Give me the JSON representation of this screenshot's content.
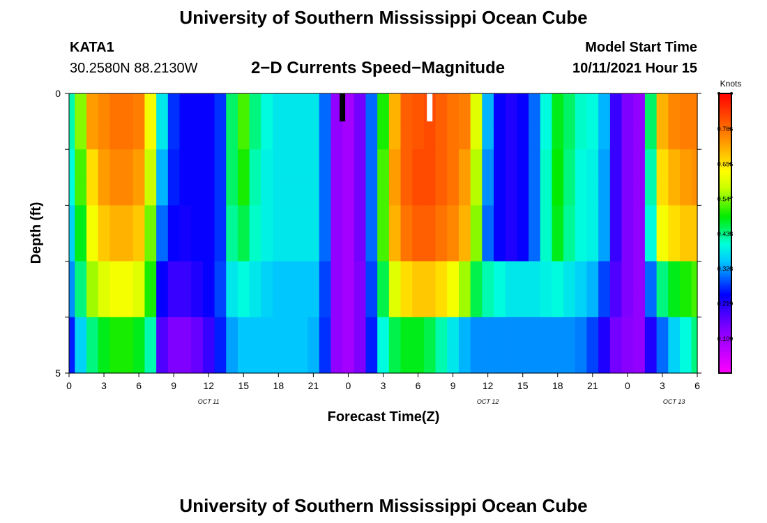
{
  "header": {
    "title": "University of Southern Mississippi Ocean Cube",
    "station": "KATA1",
    "coords": "30.2580N  88.2130W",
    "subtitle": "2−D Currents Speed−Magnitude",
    "model_start_label": "Model Start Time",
    "model_start_value": "10/11/2021 Hour 15"
  },
  "footer": {
    "title": "University of Southern Mississippi Ocean Cube"
  },
  "chart_data": {
    "type": "heatmap",
    "title": "2−D Currents Speed−Magnitude",
    "xlabel": "Forecast Time(Z)",
    "ylabel": "Depth (ft)",
    "units": "Knots",
    "ylim": [
      0,
      5
    ],
    "y_tick_labels": [
      "0",
      "5"
    ],
    "x_range_hours": [
      0,
      54
    ],
    "x_tick_labels": [
      "0",
      "3",
      "6",
      "9",
      "12",
      "15",
      "18",
      "21",
      "0",
      "3",
      "6",
      "9",
      "12",
      "15",
      "18",
      "21",
      "0",
      "3",
      "6"
    ],
    "date_labels": [
      {
        "text": "OCT  11",
        "hour": 12
      },
      {
        "text": "OCT  12",
        "hour": 36
      },
      {
        "text": "OCT  13",
        "hour": 52
      }
    ],
    "colorbar": {
      "range": [
        0,
        0.875
      ],
      "tick_labels": [
        "0.109",
        "0.219",
        "0.328",
        "0.438",
        "0.547",
        "0.656",
        "0.766"
      ],
      "tick_values": [
        0.109,
        0.219,
        0.328,
        0.438,
        0.547,
        0.656,
        0.766
      ]
    },
    "markers": [
      {
        "hour": 23.5,
        "color": "#000000",
        "depth_range": [
          0,
          0.5
        ]
      },
      {
        "hour": 31.0,
        "color": "#ffffff",
        "depth_range": [
          0,
          0.5
        ]
      }
    ],
    "x_hours": [
      0,
      1,
      2,
      3,
      4,
      5,
      6,
      7,
      8,
      9,
      10,
      11,
      12,
      13,
      14,
      15,
      16,
      17,
      18,
      19,
      20,
      21,
      22,
      23,
      24,
      25,
      26,
      27,
      28,
      29,
      30,
      31,
      32,
      33,
      34,
      35,
      36,
      37,
      38,
      39,
      40,
      41,
      42,
      43,
      44,
      45,
      46,
      47,
      48,
      49,
      50,
      51,
      52,
      53,
      54
    ],
    "depth_levels": [
      0.25,
      0.75,
      1.25,
      1.75,
      2.25,
      2.75,
      3.25,
      3.75,
      4.25,
      4.75
    ],
    "values": [
      [
        0.42,
        0.55,
        0.72,
        0.74,
        0.76,
        0.76,
        0.75,
        0.62,
        0.38,
        0.27,
        0.24,
        0.24,
        0.24,
        0.27,
        0.45,
        0.52,
        0.44,
        0.4,
        0.38,
        0.38,
        0.38,
        0.38,
        0.3,
        0.12,
        0.1,
        0.15,
        0.3,
        0.5,
        0.7,
        0.78,
        0.79,
        0.8,
        0.78,
        0.76,
        0.75,
        0.6,
        0.34,
        0.24,
        0.22,
        0.24,
        0.3,
        0.4,
        0.48,
        0.45,
        0.41,
        0.4,
        0.34,
        0.2,
        0.14,
        0.12,
        0.45,
        0.7,
        0.74,
        0.75,
        0.75
      ],
      [
        0.42,
        0.55,
        0.72,
        0.74,
        0.76,
        0.76,
        0.75,
        0.62,
        0.38,
        0.27,
        0.24,
        0.24,
        0.24,
        0.27,
        0.45,
        0.52,
        0.44,
        0.4,
        0.38,
        0.38,
        0.38,
        0.38,
        0.3,
        0.12,
        0.1,
        0.15,
        0.3,
        0.5,
        0.7,
        0.78,
        0.79,
        0.8,
        0.78,
        0.76,
        0.75,
        0.6,
        0.34,
        0.24,
        0.22,
        0.24,
        0.3,
        0.4,
        0.48,
        0.45,
        0.41,
        0.4,
        0.34,
        0.2,
        0.14,
        0.12,
        0.45,
        0.7,
        0.74,
        0.75,
        0.75
      ],
      [
        0.4,
        0.52,
        0.66,
        0.72,
        0.74,
        0.74,
        0.72,
        0.58,
        0.34,
        0.26,
        0.24,
        0.24,
        0.24,
        0.27,
        0.45,
        0.5,
        0.42,
        0.39,
        0.38,
        0.38,
        0.38,
        0.38,
        0.3,
        0.12,
        0.1,
        0.15,
        0.3,
        0.52,
        0.72,
        0.78,
        0.8,
        0.8,
        0.78,
        0.76,
        0.72,
        0.57,
        0.32,
        0.24,
        0.22,
        0.24,
        0.3,
        0.41,
        0.49,
        0.44,
        0.4,
        0.39,
        0.33,
        0.2,
        0.14,
        0.12,
        0.42,
        0.66,
        0.7,
        0.72,
        0.73
      ],
      [
        0.4,
        0.52,
        0.66,
        0.72,
        0.74,
        0.74,
        0.72,
        0.58,
        0.34,
        0.26,
        0.24,
        0.24,
        0.24,
        0.27,
        0.45,
        0.5,
        0.42,
        0.39,
        0.38,
        0.38,
        0.38,
        0.38,
        0.3,
        0.12,
        0.1,
        0.15,
        0.3,
        0.52,
        0.72,
        0.78,
        0.8,
        0.8,
        0.78,
        0.76,
        0.72,
        0.57,
        0.32,
        0.24,
        0.22,
        0.24,
        0.3,
        0.41,
        0.49,
        0.44,
        0.4,
        0.39,
        0.33,
        0.2,
        0.14,
        0.12,
        0.42,
        0.66,
        0.7,
        0.72,
        0.73
      ],
      [
        0.36,
        0.48,
        0.62,
        0.68,
        0.7,
        0.7,
        0.68,
        0.54,
        0.3,
        0.24,
        0.23,
        0.24,
        0.24,
        0.27,
        0.43,
        0.46,
        0.41,
        0.39,
        0.38,
        0.38,
        0.38,
        0.38,
        0.3,
        0.12,
        0.1,
        0.15,
        0.3,
        0.52,
        0.7,
        0.76,
        0.78,
        0.78,
        0.76,
        0.74,
        0.7,
        0.55,
        0.3,
        0.24,
        0.22,
        0.24,
        0.3,
        0.41,
        0.48,
        0.43,
        0.4,
        0.39,
        0.33,
        0.2,
        0.14,
        0.12,
        0.4,
        0.62,
        0.66,
        0.68,
        0.68
      ],
      [
        0.36,
        0.48,
        0.62,
        0.68,
        0.7,
        0.7,
        0.68,
        0.54,
        0.3,
        0.24,
        0.23,
        0.24,
        0.24,
        0.27,
        0.43,
        0.46,
        0.41,
        0.39,
        0.38,
        0.38,
        0.38,
        0.38,
        0.3,
        0.12,
        0.1,
        0.15,
        0.3,
        0.52,
        0.7,
        0.76,
        0.78,
        0.78,
        0.76,
        0.74,
        0.7,
        0.55,
        0.3,
        0.24,
        0.22,
        0.24,
        0.3,
        0.41,
        0.48,
        0.43,
        0.4,
        0.39,
        0.33,
        0.2,
        0.14,
        0.12,
        0.4,
        0.62,
        0.66,
        0.68,
        0.68
      ],
      [
        0.32,
        0.44,
        0.56,
        0.6,
        0.62,
        0.62,
        0.6,
        0.5,
        0.24,
        0.2,
        0.2,
        0.22,
        0.24,
        0.28,
        0.38,
        0.4,
        0.38,
        0.36,
        0.35,
        0.35,
        0.35,
        0.35,
        0.28,
        0.12,
        0.1,
        0.14,
        0.28,
        0.46,
        0.6,
        0.66,
        0.68,
        0.68,
        0.66,
        0.62,
        0.56,
        0.46,
        0.42,
        0.4,
        0.38,
        0.38,
        0.38,
        0.39,
        0.4,
        0.38,
        0.36,
        0.34,
        0.28,
        0.18,
        0.14,
        0.12,
        0.3,
        0.44,
        0.48,
        0.5,
        0.52
      ],
      [
        0.32,
        0.44,
        0.56,
        0.6,
        0.62,
        0.62,
        0.6,
        0.5,
        0.24,
        0.2,
        0.2,
        0.22,
        0.24,
        0.28,
        0.38,
        0.4,
        0.38,
        0.36,
        0.35,
        0.35,
        0.35,
        0.35,
        0.28,
        0.12,
        0.1,
        0.14,
        0.28,
        0.46,
        0.6,
        0.66,
        0.68,
        0.68,
        0.66,
        0.62,
        0.56,
        0.46,
        0.42,
        0.4,
        0.38,
        0.38,
        0.38,
        0.39,
        0.4,
        0.38,
        0.36,
        0.34,
        0.28,
        0.18,
        0.14,
        0.12,
        0.3,
        0.44,
        0.48,
        0.5,
        0.52
      ],
      [
        0.26,
        0.36,
        0.44,
        0.48,
        0.5,
        0.5,
        0.48,
        0.42,
        0.18,
        0.14,
        0.14,
        0.16,
        0.2,
        0.26,
        0.33,
        0.35,
        0.35,
        0.35,
        0.35,
        0.35,
        0.35,
        0.34,
        0.27,
        0.12,
        0.1,
        0.14,
        0.26,
        0.4,
        0.46,
        0.48,
        0.48,
        0.46,
        0.42,
        0.38,
        0.34,
        0.32,
        0.32,
        0.32,
        0.32,
        0.32,
        0.32,
        0.32,
        0.32,
        0.32,
        0.31,
        0.28,
        0.22,
        0.15,
        0.13,
        0.12,
        0.22,
        0.3,
        0.36,
        0.4,
        0.44
      ],
      [
        0.26,
        0.36,
        0.44,
        0.48,
        0.5,
        0.5,
        0.48,
        0.42,
        0.18,
        0.14,
        0.14,
        0.16,
        0.2,
        0.26,
        0.33,
        0.35,
        0.35,
        0.35,
        0.35,
        0.35,
        0.35,
        0.34,
        0.27,
        0.12,
        0.1,
        0.14,
        0.26,
        0.4,
        0.46,
        0.48,
        0.48,
        0.46,
        0.42,
        0.38,
        0.34,
        0.32,
        0.32,
        0.32,
        0.32,
        0.32,
        0.32,
        0.32,
        0.32,
        0.32,
        0.31,
        0.28,
        0.22,
        0.15,
        0.13,
        0.12,
        0.22,
        0.3,
        0.36,
        0.4,
        0.44
      ]
    ]
  }
}
